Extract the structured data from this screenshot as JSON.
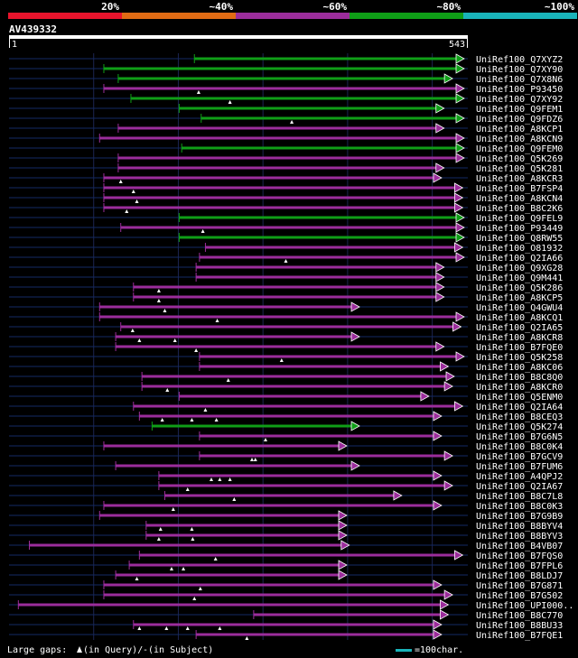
{
  "chart_data": {
    "type": "alignment-overview",
    "query": {
      "id": "AV439332",
      "start": 1,
      "end": 543
    },
    "identity_legend": [
      {
        "label": "20%",
        "color": "#e8142c"
      },
      {
        "label": "~40%",
        "color": "#e06b14"
      },
      {
        "label": "~60%",
        "color": "#9b2d9b"
      },
      {
        "label": "~80%",
        "color": "#0f9e17"
      },
      {
        "label": "~100%",
        "color": "#19b3b9"
      }
    ],
    "footer": {
      "gaps_label": "Large gaps: ",
      "gap_query_label": "(in Query)/",
      "gap_dash": "-",
      "gap_subject_label": " (in Subject)",
      "scale_label": "=100char."
    },
    "hits": [
      {
        "id": "UniRef100_Q7XYZ2",
        "start": 220,
        "end": 540,
        "color": "#0f9e17",
        "qgaps": []
      },
      {
        "id": "UniRef100_Q7XY90",
        "start": 113,
        "end": 540,
        "color": "#0f9e17",
        "qgaps": []
      },
      {
        "id": "UniRef100_Q7X8N6",
        "start": 130,
        "end": 525,
        "color": "#0f9e17",
        "qgaps": []
      },
      {
        "id": "UniRef100_P93450",
        "start": 113,
        "end": 540,
        "color": "#9b2d9b",
        "qgaps": [
          225
        ]
      },
      {
        "id": "UniRef100_Q7XY92",
        "start": 145,
        "end": 540,
        "color": "#0f9e17",
        "qgaps": [
          262
        ]
      },
      {
        "id": "UniRef100_Q9FEM1",
        "start": 202,
        "end": 515,
        "color": "#0f9e17",
        "qgaps": []
      },
      {
        "id": "UniRef100_Q9FDZ6",
        "start": 228,
        "end": 552,
        "color": "#0f9e17",
        "qgaps": [
          335
        ]
      },
      {
        "id": "UniRef100_A8KCP1",
        "start": 130,
        "end": 515,
        "color": "#9b2d9b",
        "qgaps": []
      },
      {
        "id": "UniRef100_A8KCN9",
        "start": 108,
        "end": 552,
        "color": "#9b2d9b",
        "qgaps": []
      },
      {
        "id": "UniRef100_Q9FEM0",
        "start": 205,
        "end": 552,
        "color": "#0f9e17",
        "qgaps": []
      },
      {
        "id": "UniRef100_Q5K269",
        "start": 130,
        "end": 552,
        "color": "#9b2d9b",
        "qgaps": []
      },
      {
        "id": "UniRef100_Q5K281",
        "start": 130,
        "end": 515,
        "color": "#9b2d9b",
        "qgaps": []
      },
      {
        "id": "UniRef100_A8KCR3",
        "start": 113,
        "end": 512,
        "color": "#9b2d9b",
        "qgaps": [
          133
        ]
      },
      {
        "id": "UniRef100_B7FSP4",
        "start": 113,
        "end": 537,
        "color": "#9b2d9b",
        "qgaps": [
          148
        ]
      },
      {
        "id": "UniRef100_A8KCN4",
        "start": 113,
        "end": 537,
        "color": "#9b2d9b",
        "qgaps": [
          152
        ]
      },
      {
        "id": "UniRef100_B8C2K6",
        "start": 113,
        "end": 537,
        "color": "#9b2d9b",
        "qgaps": [
          140
        ]
      },
      {
        "id": "UniRef100_Q9FEL9",
        "start": 202,
        "end": 544,
        "color": "#0f9e17",
        "qgaps": []
      },
      {
        "id": "UniRef100_P93449",
        "start": 133,
        "end": 544,
        "color": "#9b2d9b",
        "qgaps": [
          230
        ]
      },
      {
        "id": "UniRef100_Q8RW55",
        "start": 202,
        "end": 544,
        "color": "#0f9e17",
        "qgaps": []
      },
      {
        "id": "UniRef100_O81932",
        "start": 233,
        "end": 537,
        "color": "#9b2d9b",
        "qgaps": []
      },
      {
        "id": "UniRef100_Q2IA66",
        "start": 226,
        "end": 552,
        "color": "#9b2d9b",
        "qgaps": [
          328
        ]
      },
      {
        "id": "UniRef100_Q9XG28",
        "start": 222,
        "end": 515,
        "color": "#9b2d9b",
        "qgaps": []
      },
      {
        "id": "UniRef100_Q9M441",
        "start": 222,
        "end": 515,
        "color": "#9b2d9b",
        "qgaps": []
      },
      {
        "id": "UniRef100_Q5K286",
        "start": 148,
        "end": 515,
        "color": "#9b2d9b",
        "qgaps": [
          178
        ]
      },
      {
        "id": "UniRef100_A8KCP5",
        "start": 148,
        "end": 515,
        "color": "#9b2d9b",
        "qgaps": [
          178
        ]
      },
      {
        "id": "UniRef100_Q4GWU4",
        "start": 108,
        "end": 415,
        "color": "#9b2d9b",
        "qgaps": [
          185
        ]
      },
      {
        "id": "UniRef100_A8KCQ1",
        "start": 108,
        "end": 552,
        "color": "#9b2d9b",
        "qgaps": [
          247
        ]
      },
      {
        "id": "UniRef100_Q2IA65",
        "start": 133,
        "end": 535,
        "color": "#9b2d9b",
        "qgaps": [
          147
        ]
      },
      {
        "id": "UniRef100_A8KCR8",
        "start": 127,
        "end": 415,
        "color": "#9b2d9b",
        "qgaps": [
          155,
          197
        ]
      },
      {
        "id": "UniRef100_B7FQE0",
        "start": 127,
        "end": 515,
        "color": "#9b2d9b",
        "qgaps": [
          222
        ]
      },
      {
        "id": "UniRef100_Q5K258",
        "start": 226,
        "end": 552,
        "color": "#9b2d9b",
        "qgaps": [
          323
        ]
      },
      {
        "id": "UniRef100_A8KC06",
        "start": 226,
        "end": 520,
        "color": "#9b2d9b",
        "qgaps": []
      },
      {
        "id": "UniRef100_B8C8Q0",
        "start": 158,
        "end": 527,
        "color": "#9b2d9b",
        "qgaps": [
          260
        ]
      },
      {
        "id": "UniRef100_A8KCR0",
        "start": 158,
        "end": 525,
        "color": "#9b2d9b",
        "qgaps": [
          188
        ]
      },
      {
        "id": "UniRef100_Q5ENM0",
        "start": 202,
        "end": 497,
        "color": "#9b2d9b",
        "qgaps": []
      },
      {
        "id": "UniRef100_Q2IA64",
        "start": 148,
        "end": 537,
        "color": "#9b2d9b",
        "qgaps": [
          233
        ]
      },
      {
        "id": "UniRef100_B8CEQ3",
        "start": 155,
        "end": 512,
        "color": "#9b2d9b",
        "qgaps": [
          182,
          217,
          246
        ]
      },
      {
        "id": "UniRef100_Q5K274",
        "start": 170,
        "end": 415,
        "color": "#0f9e17",
        "qgaps": []
      },
      {
        "id": "UniRef100_B7G6N5",
        "start": 226,
        "end": 512,
        "color": "#9b2d9b",
        "qgaps": [
          304
        ]
      },
      {
        "id": "UniRef100_B8C0K4",
        "start": 113,
        "end": 400,
        "color": "#9b2d9b",
        "qgaps": []
      },
      {
        "id": "UniRef100_B7GCV9",
        "start": 226,
        "end": 525,
        "color": "#9b2d9b",
        "qgaps": [
          288,
          292
        ]
      },
      {
        "id": "UniRef100_B7FUM6",
        "start": 127,
        "end": 415,
        "color": "#9b2d9b",
        "qgaps": []
      },
      {
        "id": "UniRef100_A4QPJ2",
        "start": 178,
        "end": 512,
        "color": "#9b2d9b",
        "qgaps": [
          240,
          250,
          262
        ]
      },
      {
        "id": "UniRef100_Q2IA67",
        "start": 178,
        "end": 525,
        "color": "#9b2d9b",
        "qgaps": [
          212
        ]
      },
      {
        "id": "UniRef100_B8C7L8",
        "start": 185,
        "end": 465,
        "color": "#9b2d9b",
        "qgaps": [
          267
        ]
      },
      {
        "id": "UniRef100_B8C0K3",
        "start": 113,
        "end": 512,
        "color": "#9b2d9b",
        "qgaps": [
          195
        ]
      },
      {
        "id": "UniRef100_B7G9B9",
        "start": 108,
        "end": 400,
        "color": "#9b2d9b",
        "qgaps": []
      },
      {
        "id": "UniRef100_B8BYV4",
        "start": 163,
        "end": 400,
        "color": "#9b2d9b",
        "qgaps": [
          180,
          217
        ]
      },
      {
        "id": "UniRef100_B8BYV3",
        "start": 163,
        "end": 400,
        "color": "#9b2d9b",
        "qgaps": [
          178,
          218
        ]
      },
      {
        "id": "UniRef100_B4VB07",
        "start": 25,
        "end": 403,
        "color": "#9b2d9b",
        "qgaps": []
      },
      {
        "id": "UniRef100_B7FQS0",
        "start": 155,
        "end": 537,
        "color": "#9b2d9b",
        "qgaps": [
          245
        ]
      },
      {
        "id": "UniRef100_B7FPL6",
        "start": 143,
        "end": 400,
        "color": "#9b2d9b",
        "qgaps": [
          193,
          207
        ]
      },
      {
        "id": "UniRef100_B8LDJ7",
        "start": 127,
        "end": 400,
        "color": "#9b2d9b",
        "qgaps": [
          152
        ]
      },
      {
        "id": "UniRef100_B7G871",
        "start": 113,
        "end": 512,
        "color": "#9b2d9b",
        "qgaps": [
          227
        ]
      },
      {
        "id": "UniRef100_B7G502",
        "start": 113,
        "end": 525,
        "color": "#9b2d9b",
        "qgaps": [
          220
        ]
      },
      {
        "id": "UniRef100_UPI000..",
        "start": 12,
        "end": 520,
        "color": "#9b2d9b",
        "qgaps": []
      },
      {
        "id": "UniRef100_B8C770",
        "start": 290,
        "end": 520,
        "color": "#9b2d9b",
        "qgaps": []
      },
      {
        "id": "UniRef100_B8BU33",
        "start": 148,
        "end": 512,
        "color": "#9b2d9b",
        "qgaps": [
          155,
          187,
          212,
          250
        ]
      },
      {
        "id": "UniRef100_B7FQE1",
        "start": 222,
        "end": 512,
        "color": "#9b2d9b",
        "qgaps": [
          282
        ]
      }
    ]
  }
}
